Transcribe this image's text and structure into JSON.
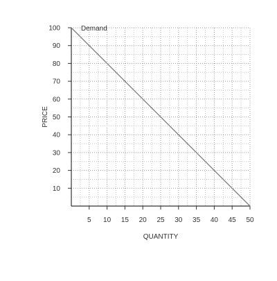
{
  "chart_data": {
    "type": "line",
    "title": "",
    "xlabel": "QUANTITY",
    "ylabel": "PRICE",
    "xlim": [
      0,
      50
    ],
    "ylim": [
      0,
      100
    ],
    "x_ticks": [
      5,
      10,
      15,
      20,
      25,
      30,
      35,
      40,
      45,
      50
    ],
    "y_ticks": [
      10,
      20,
      30,
      40,
      50,
      60,
      70,
      80,
      90,
      100
    ],
    "grid": true,
    "grid_style": "dotted",
    "legend": "none",
    "series": [
      {
        "name": "Demand",
        "color": "#7f7f7f",
        "x": [
          0,
          50
        ],
        "y": [
          100,
          0
        ]
      }
    ]
  }
}
